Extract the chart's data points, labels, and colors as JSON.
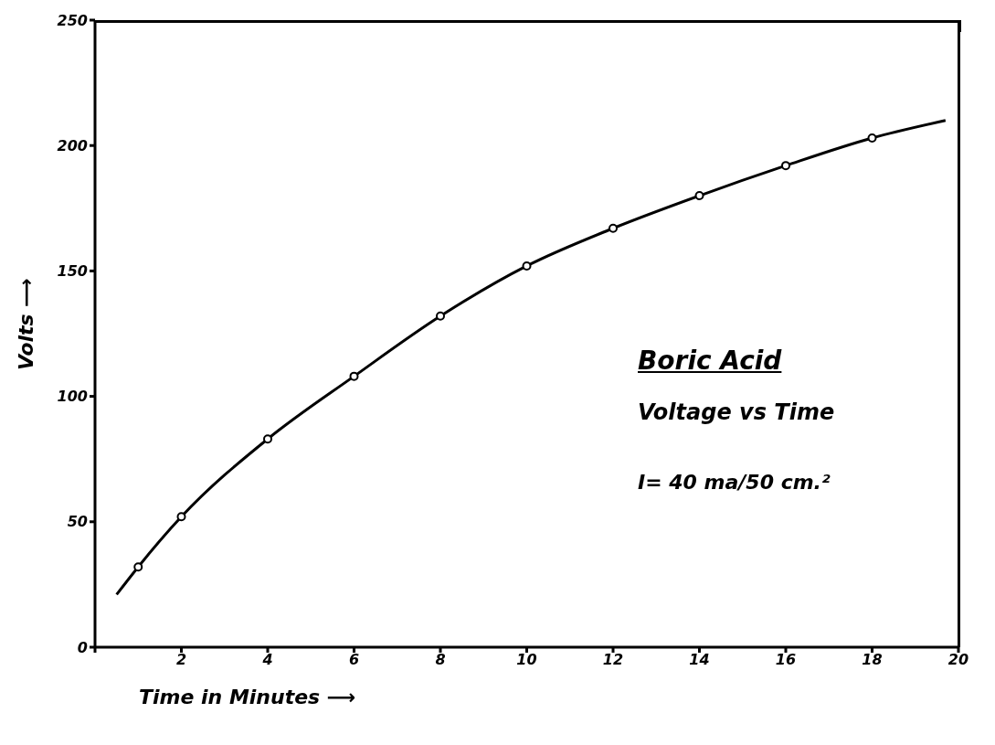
{
  "chart_data": {
    "type": "line",
    "title": "Boric Acid",
    "subtitle": "Voltage vs Time",
    "xlabel": "Time in Minutes ⟶",
    "ylabel": "Volts ⟶",
    "annotations": [
      "I= 40 ma/50 cm.²"
    ],
    "series": [
      {
        "color": "#000000",
        "marker": "none",
        "x": [
          0.5,
          1,
          2,
          4,
          6,
          8,
          10,
          12,
          14,
          16,
          18,
          19.7
        ],
        "values": [
          21,
          32,
          52,
          83,
          108,
          132,
          152,
          167,
          180,
          192,
          203,
          210
        ]
      },
      {
        "type": "scatter",
        "color": "#000000",
        "marker": "circle",
        "x": [
          1,
          2,
          4,
          6,
          8,
          10,
          12,
          14,
          16,
          18
        ],
        "values": [
          32,
          52,
          83,
          108,
          132,
          152,
          167,
          180,
          192,
          203
        ]
      }
    ],
    "xlim": [
      0,
      20
    ],
    "xticks": [
      {
        "value": 0,
        "label": null
      },
      2,
      4,
      6,
      8,
      10,
      12,
      14,
      16,
      18,
      20
    ],
    "ylim": [
      0,
      250
    ],
    "yticks": [
      0,
      50,
      100,
      150,
      200,
      250
    ],
    "grid": false
  }
}
